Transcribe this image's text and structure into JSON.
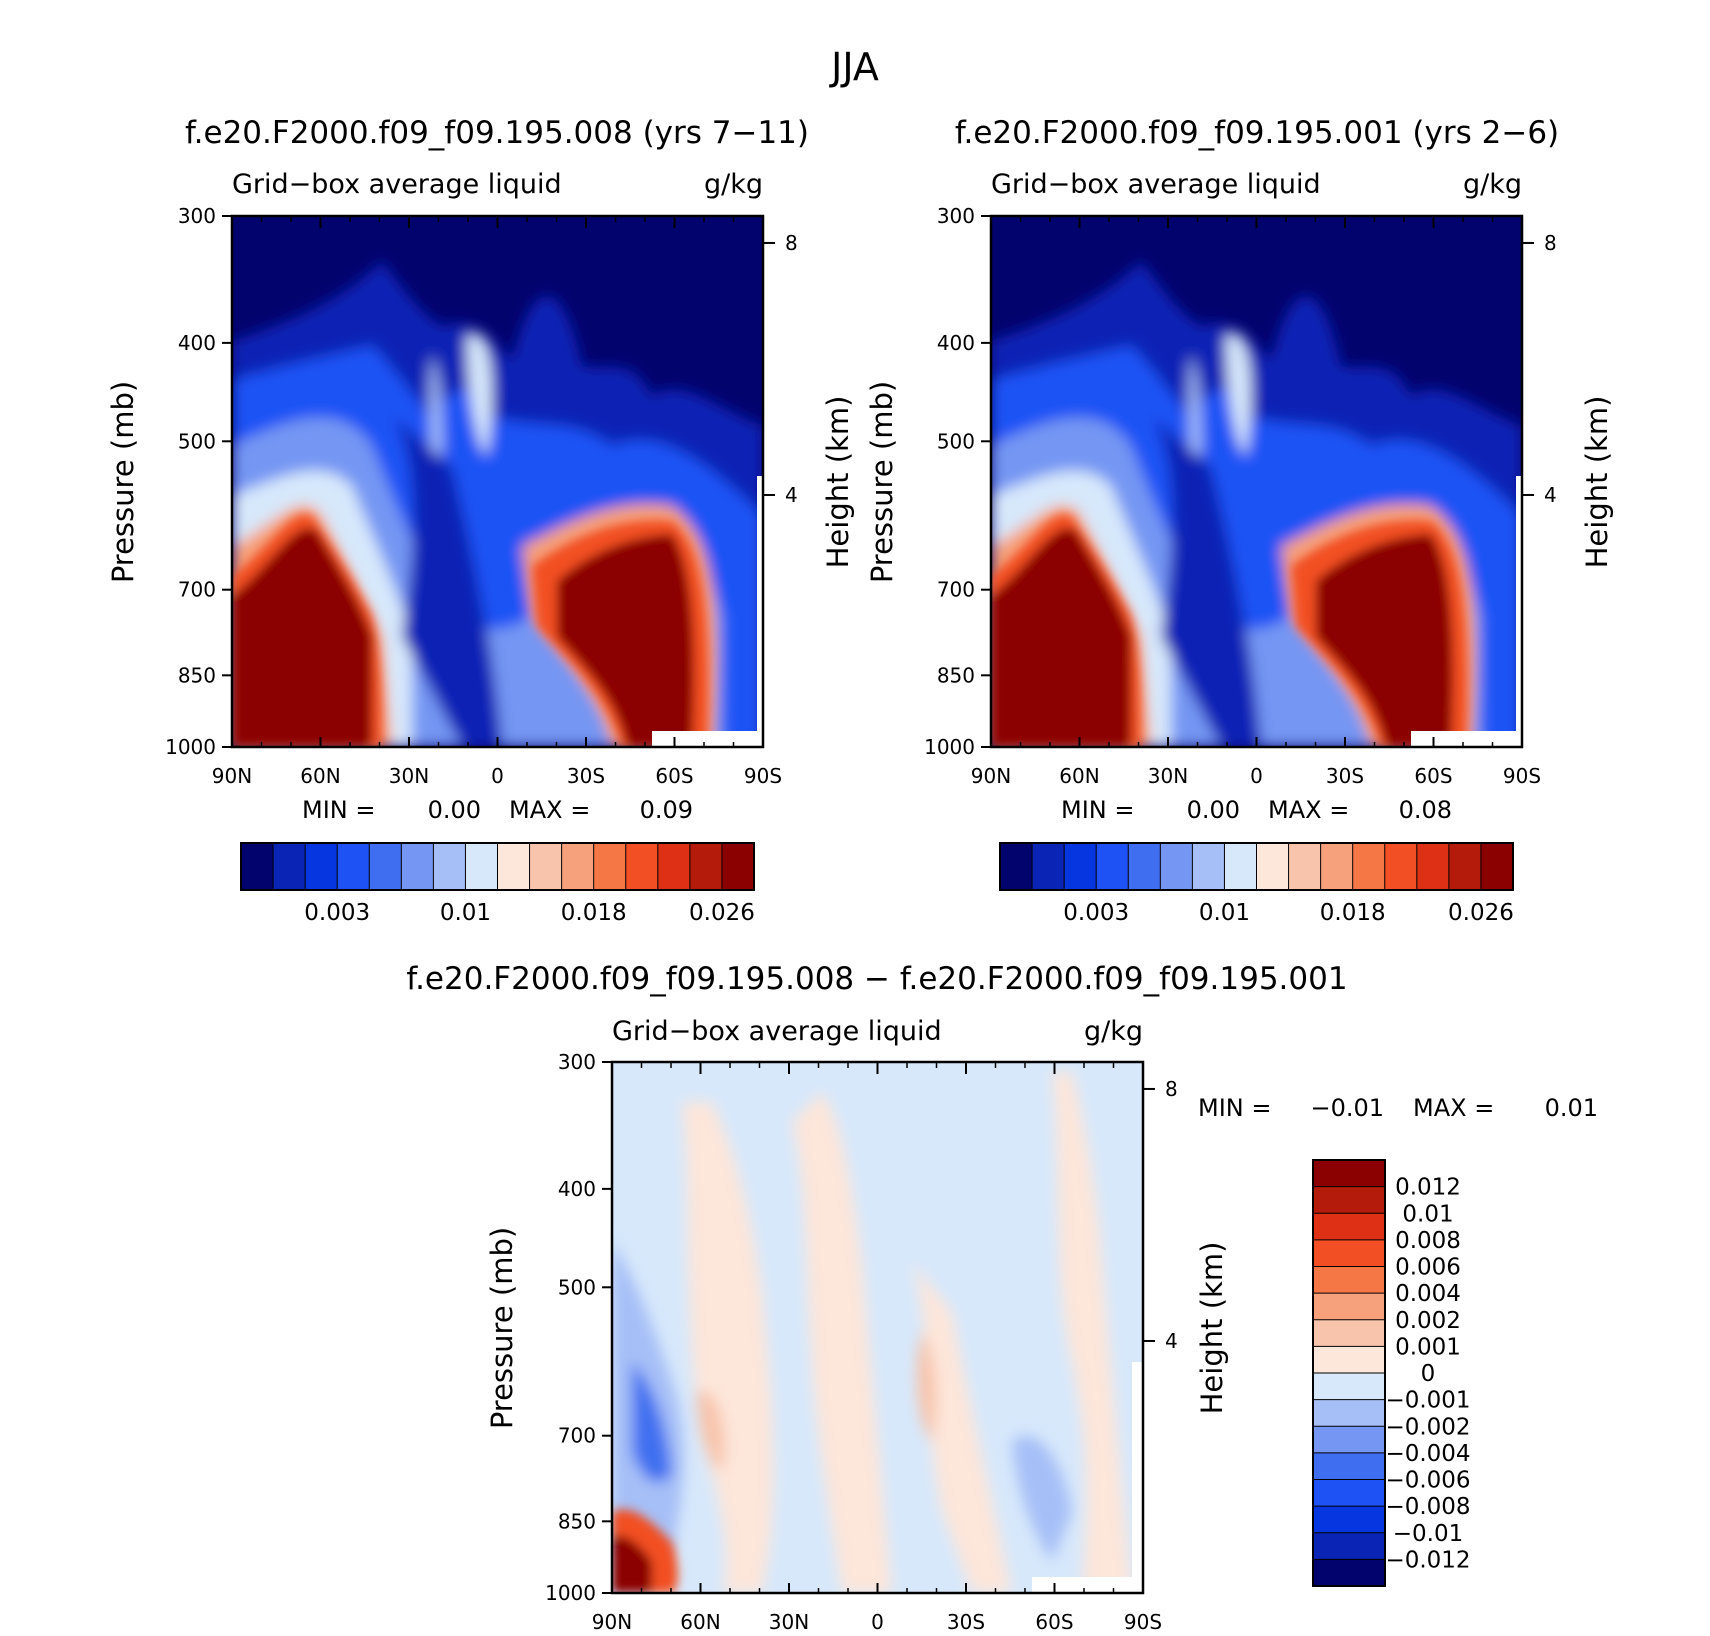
{
  "figure": {
    "title": "JJA"
  },
  "panels": [
    {
      "title": "f.e20.F2000.f09_f09.195.008 (yrs 7−11)",
      "field_label": "Grid−box average liquid",
      "units": "g/kg",
      "ylabel": "Pressure (mb)",
      "ylabel_right": "Height (km)",
      "min_label": "MIN =",
      "min_value": "0.00",
      "max_label": "MAX =",
      "max_value": "0.09"
    },
    {
      "title": "f.e20.F2000.f09_f09.195.001 (yrs 2−6)",
      "field_label": "Grid−box average liquid",
      "units": "g/kg",
      "ylabel": "Pressure (mb)",
      "ylabel_right": "Height (km)",
      "min_label": "MIN =",
      "min_value": "0.00",
      "max_label": "MAX =",
      "max_value": "0.08"
    },
    {
      "title": "f.e20.F2000.f09_f09.195.008 − f.e20.F2000.f09_f09.195.001",
      "field_label": "Grid−box average liquid",
      "units": "g/kg",
      "ylabel": "Pressure (mb)",
      "ylabel_right": "Height (km)",
      "min_label": "MIN =",
      "min_value": "−0.01",
      "max_label": "MAX =",
      "max_value": "0.01"
    }
  ],
  "chart_data": [
    {
      "type": "heatmap",
      "title": "f.e20.F2000.f09_f09.195.008 (yrs 7−11)",
      "subtitle": "Grid−box average liquid",
      "units": "g/kg",
      "xlabel": "",
      "ylabel": "Pressure (mb)",
      "ylabel_right": "Height (km)",
      "x_ticks": [
        "90N",
        "60N",
        "30N",
        "0",
        "30S",
        "60S",
        "90S"
      ],
      "y_ticks": [
        "300",
        "400",
        "500",
        "700",
        "850",
        "1000"
      ],
      "y_ticks_right": [
        "8",
        "4"
      ],
      "ylim": [
        1000,
        300
      ],
      "colorbar_levels": [
        "0.003",
        "0.01",
        "0.018",
        "0.026"
      ],
      "colorbar_colors": [
        "#03036e",
        "#0a24b5",
        "#0636e0",
        "#1e52f5",
        "#3f6ff0",
        "#7596f3",
        "#a6bff7",
        "#d7e8fb",
        "#fde6da",
        "#f8c4ab",
        "#f6a07c",
        "#f67746",
        "#f24f24",
        "#de3014",
        "#b51b0a",
        "#8b0000"
      ],
      "min": 0.0,
      "max": 0.09
    },
    {
      "type": "heatmap",
      "title": "f.e20.F2000.f09_f09.195.001 (yrs 2−6)",
      "subtitle": "Grid−box average liquid",
      "units": "g/kg",
      "xlabel": "",
      "ylabel": "Pressure (mb)",
      "ylabel_right": "Height (km)",
      "x_ticks": [
        "90N",
        "60N",
        "30N",
        "0",
        "30S",
        "60S",
        "90S"
      ],
      "y_ticks": [
        "300",
        "400",
        "500",
        "700",
        "850",
        "1000"
      ],
      "y_ticks_right": [
        "8",
        "4"
      ],
      "ylim": [
        1000,
        300
      ],
      "colorbar_levels": [
        "0.003",
        "0.01",
        "0.018",
        "0.026"
      ],
      "colorbar_colors": [
        "#03036e",
        "#0a24b5",
        "#0636e0",
        "#1e52f5",
        "#3f6ff0",
        "#7596f3",
        "#a6bff7",
        "#d7e8fb",
        "#fde6da",
        "#f8c4ab",
        "#f6a07c",
        "#f67746",
        "#f24f24",
        "#de3014",
        "#b51b0a",
        "#8b0000"
      ],
      "min": 0.0,
      "max": 0.08
    },
    {
      "type": "heatmap",
      "title": "f.e20.F2000.f09_f09.195.008 − f.e20.F2000.f09_f09.195.001",
      "subtitle": "Grid−box average liquid",
      "units": "g/kg",
      "xlabel": "",
      "ylabel": "Pressure (mb)",
      "ylabel_right": "Height (km)",
      "x_ticks": [
        "90N",
        "60N",
        "30N",
        "0",
        "30S",
        "60S",
        "90S"
      ],
      "y_ticks": [
        "300",
        "400",
        "500",
        "700",
        "850",
        "1000"
      ],
      "y_ticks_right": [
        "8",
        "4"
      ],
      "ylim": [
        1000,
        300
      ],
      "colorbar_levels": [
        "0.012",
        "0.01",
        "0.008",
        "0.006",
        "0.004",
        "0.002",
        "0.001",
        "0",
        "−0.001",
        "−0.002",
        "−0.004",
        "−0.006",
        "−0.008",
        "−0.01",
        "−0.012"
      ],
      "colorbar_colors": [
        "#8b0000",
        "#b51b0a",
        "#de3014",
        "#f24f24",
        "#f67746",
        "#f6a07c",
        "#f8c4ab",
        "#fde6da",
        "#d7e8fb",
        "#a6bff7",
        "#7596f3",
        "#3f6ff0",
        "#1e52f5",
        "#0636e0",
        "#0a24b5",
        "#03036e"
      ],
      "min": -0.01,
      "max": 0.01
    }
  ]
}
